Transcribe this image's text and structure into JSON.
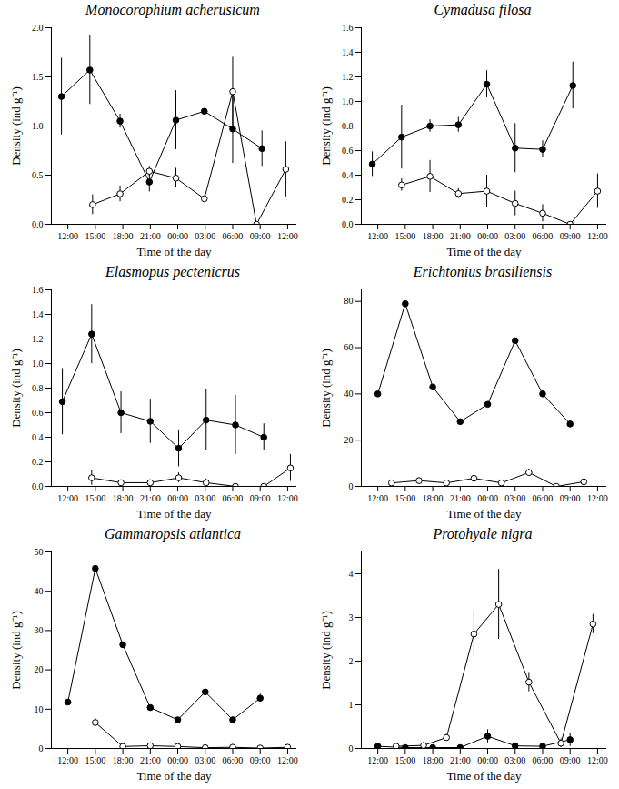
{
  "chart_data": [
    {
      "type": "line",
      "title": "Monocorophium acherusicum",
      "xlabel": "Time of the day",
      "ylabel": "Density (ind g⁻¹)",
      "xlim": [
        10.2,
        37
      ],
      "xticks": [
        {
          "value": 12,
          "label": "12:00"
        },
        {
          "value": 15,
          "label": "15:00"
        },
        {
          "value": 18,
          "label": "18:00"
        },
        {
          "value": 21,
          "label": "21:00"
        },
        {
          "value": 24,
          "label": "00:00"
        },
        {
          "value": 27,
          "label": "03:00"
        },
        {
          "value": 30,
          "label": "06:00"
        },
        {
          "value": 33,
          "label": "09:00"
        },
        {
          "value": 36,
          "label": "12:00"
        }
      ],
      "ylim": [
        0,
        2
      ],
      "yticks": [
        {
          "value": 0,
          "label": "0.0"
        },
        0.5,
        {
          "value": 1,
          "label": "1.0"
        },
        1.5,
        {
          "value": 2,
          "label": "2.0"
        }
      ],
      "series": [
        {
          "color": "#000000",
          "marker": "filled_circle",
          "x": [
            11.3,
            14.4,
            17.7,
            20.9,
            23.8,
            26.9,
            30,
            33.2
          ],
          "values": [
            1.3,
            1.57,
            1.05,
            0.43,
            1.06,
            1.15,
            0.97,
            0.77
          ],
          "errors": [
            0.39,
            0.35,
            0.07,
            0.1,
            0.3,
            0,
            0.35,
            0.18
          ]
        },
        {
          "color": "#000000",
          "marker": "open_circle",
          "x": [
            14.7,
            17.7,
            20.9,
            23.8,
            26.9,
            30,
            32.6,
            35.8
          ],
          "values": [
            0.2,
            0.31,
            0.54,
            0.47,
            0.26,
            1.35,
            0,
            0.56
          ],
          "errors": [
            0.1,
            0.08,
            0.05,
            0.1,
            0.03,
            0.35,
            0,
            0.28
          ]
        }
      ]
    },
    {
      "type": "line",
      "title": "Cymadusa filosa",
      "xlabel": "Time of the day",
      "ylabel": "Density (ind g⁻¹)",
      "xlim": [
        10.2,
        37
      ],
      "xticks": [
        {
          "value": 12,
          "label": "12:00"
        },
        {
          "value": 15,
          "label": "15:00"
        },
        {
          "value": 18,
          "label": "18:00"
        },
        {
          "value": 21,
          "label": "21:00"
        },
        {
          "value": 24,
          "label": "00:00"
        },
        {
          "value": 27,
          "label": "03:00"
        },
        {
          "value": 30,
          "label": "06:00"
        },
        {
          "value": 33,
          "label": "09:00"
        },
        {
          "value": 36,
          "label": "12:00"
        }
      ],
      "ylim": [
        0,
        1.6
      ],
      "yticks": [
        {
          "value": 0,
          "label": "0.0"
        },
        0.2,
        0.4,
        0.6,
        0.8,
        {
          "value": 1,
          "label": "1.0"
        },
        1.2,
        1.4,
        1.6
      ],
      "series": [
        {
          "color": "#000000",
          "marker": "filled_circle",
          "x": [
            11.4,
            14.6,
            17.7,
            20.8,
            23.9,
            27,
            30,
            33.3
          ],
          "values": [
            0.49,
            0.71,
            0.8,
            0.81,
            1.14,
            0.62,
            0.61,
            1.13
          ],
          "errors": [
            0.1,
            0.26,
            0.05,
            0.06,
            0.11,
            0.2,
            0.07,
            0.19
          ]
        },
        {
          "color": "#000000",
          "marker": "open_circle",
          "x": [
            14.6,
            17.7,
            20.8,
            23.9,
            27,
            30,
            33,
            36
          ],
          "values": [
            0.32,
            0.39,
            0.25,
            0.27,
            0.17,
            0.09,
            0,
            0.27
          ],
          "errors": [
            0.05,
            0.13,
            0.04,
            0.13,
            0.1,
            0.07,
            0,
            0.14
          ]
        }
      ]
    },
    {
      "type": "line",
      "title": "Elasmopus pectenicrus",
      "xlabel": "Time of the day",
      "ylabel": "Density (ind g⁻¹)",
      "xlim": [
        10.2,
        37
      ],
      "xticks": [
        {
          "value": 12,
          "label": "12:00"
        },
        {
          "value": 15,
          "label": "15:00"
        },
        {
          "value": 18,
          "label": "18:00"
        },
        {
          "value": 21,
          "label": "21:00"
        },
        {
          "value": 24,
          "label": "00:00"
        },
        {
          "value": 27,
          "label": "03:00"
        },
        {
          "value": 30,
          "label": "06:00"
        },
        {
          "value": 33,
          "label": "09:00"
        },
        {
          "value": 36,
          "label": "12:00"
        }
      ],
      "ylim": [
        0,
        1.6
      ],
      "yticks": [
        {
          "value": 0,
          "label": "0.0"
        },
        0.2,
        0.4,
        0.6,
        0.8,
        {
          "value": 1,
          "label": "1.0"
        },
        1.2,
        1.4,
        1.6
      ],
      "series": [
        {
          "color": "#000000",
          "marker": "filled_circle",
          "x": [
            11.4,
            14.6,
            17.8,
            21,
            24.1,
            27.1,
            30.3,
            33.4
          ],
          "values": [
            0.69,
            1.24,
            0.6,
            0.53,
            0.31,
            0.54,
            0.5,
            0.4
          ],
          "errors": [
            0.27,
            0.24,
            0.17,
            0.18,
            0.15,
            0.25,
            0.24,
            0.11
          ]
        },
        {
          "color": "#000000",
          "marker": "open_circle",
          "x": [
            14.6,
            17.8,
            21,
            24.1,
            27.1,
            30.3,
            33.4,
            36.3
          ],
          "values": [
            0.07,
            0.03,
            0.03,
            0.07,
            0.03,
            0,
            0,
            0.15
          ],
          "errors": [
            0.06,
            0.01,
            0.02,
            0.04,
            0.03,
            0,
            0,
            0.11
          ]
        }
      ]
    },
    {
      "type": "line",
      "title": "Erichtonius brasiliensis",
      "xlabel": "Time of the day",
      "ylabel": "Density (ind g⁻¹)",
      "xlim": [
        10.2,
        37
      ],
      "xticks": [
        {
          "value": 12,
          "label": "12:00"
        },
        {
          "value": 15,
          "label": "15:00"
        },
        {
          "value": 18,
          "label": "18:00"
        },
        {
          "value": 21,
          "label": "21:00"
        },
        {
          "value": 24,
          "label": "00:00"
        },
        {
          "value": 27,
          "label": "03:00"
        },
        {
          "value": 30,
          "label": "06:00"
        },
        {
          "value": 33,
          "label": "09:00"
        },
        {
          "value": 36,
          "label": "12:00"
        }
      ],
      "ylim": [
        0,
        85
      ],
      "yticks": [
        0,
        20,
        40,
        60,
        80
      ],
      "series": [
        {
          "color": "#000000",
          "marker": "filled_circle",
          "x": [
            12,
            15,
            18,
            21,
            24,
            27,
            30,
            33
          ],
          "values": [
            40,
            79,
            43,
            28,
            35.5,
            63,
            40,
            27
          ],
          "errors": [
            0,
            0,
            0,
            0,
            0,
            0,
            0,
            0
          ]
        },
        {
          "color": "#000000",
          "marker": "open_circle",
          "x": [
            13.5,
            16.5,
            19.5,
            22.5,
            25.5,
            28.5,
            31.5,
            34.5
          ],
          "values": [
            1.5,
            2.5,
            1.5,
            3.5,
            1.5,
            6,
            0,
            2
          ],
          "errors": [
            0,
            0.5,
            0,
            0.6,
            0,
            1.5,
            0,
            0.8
          ]
        }
      ]
    },
    {
      "type": "line",
      "title": "Gammaropsis atlantica",
      "xlabel": "Time of the day",
      "ylabel": "Density (ind g⁻¹)",
      "xlim": [
        10.2,
        37
      ],
      "xticks": [
        {
          "value": 12,
          "label": "12:00"
        },
        {
          "value": 15,
          "label": "15:00"
        },
        {
          "value": 18,
          "label": "18:00"
        },
        {
          "value": 21,
          "label": "21:00"
        },
        {
          "value": 24,
          "label": "00:00"
        },
        {
          "value": 27,
          "label": "03:00"
        },
        {
          "value": 30,
          "label": "06:00"
        },
        {
          "value": 33,
          "label": "09:00"
        },
        {
          "value": 36,
          "label": "12:00"
        }
      ],
      "ylim": [
        0,
        50
      ],
      "yticks": [
        0,
        10,
        20,
        30,
        40,
        50
      ],
      "series": [
        {
          "color": "#000000",
          "marker": "filled_circle",
          "x": [
            12,
            15,
            18,
            21,
            24,
            27,
            30,
            33
          ],
          "values": [
            11.8,
            45.8,
            26.4,
            10.4,
            7.3,
            14.4,
            7.3,
            12.8
          ],
          "errors": [
            0.6,
            0,
            0,
            0,
            0,
            0,
            0,
            1
          ]
        },
        {
          "color": "#000000",
          "marker": "open_circle",
          "x": [
            15,
            18,
            21,
            24,
            27,
            30,
            33,
            36
          ],
          "values": [
            6.6,
            0.5,
            0.7,
            0.5,
            0.2,
            0.3,
            0.1,
            0.3
          ],
          "errors": [
            1,
            0.3,
            0.2,
            0.2,
            0.1,
            0.1,
            0.1,
            0.1
          ]
        }
      ]
    },
    {
      "type": "line",
      "title": "Protohyale nigra",
      "xlabel": "Time of the day",
      "ylabel": "Density (ind g⁻¹)",
      "xlim": [
        10.2,
        37
      ],
      "xticks": [
        {
          "value": 12,
          "label": "12:00"
        },
        {
          "value": 15,
          "label": "15:00"
        },
        {
          "value": 18,
          "label": "18:00"
        },
        {
          "value": 21,
          "label": "21:00"
        },
        {
          "value": 24,
          "label": "00:00"
        },
        {
          "value": 27,
          "label": "03:00"
        },
        {
          "value": 30,
          "label": "06:00"
        },
        {
          "value": 33,
          "label": "09:00"
        },
        {
          "value": 36,
          "label": "12:00"
        }
      ],
      "ylim": [
        0,
        4.5
      ],
      "yticks": [
        0,
        1,
        2,
        3,
        4
      ],
      "series": [
        {
          "color": "#000000",
          "marker": "filled_circle",
          "x": [
            12,
            15,
            18,
            21,
            24,
            27,
            30,
            33
          ],
          "values": [
            0.05,
            0.02,
            0.02,
            0.02,
            0.28,
            0.06,
            0.05,
            0.2
          ],
          "errors": [
            0,
            0,
            0,
            0,
            0.15,
            0,
            0,
            0.15
          ]
        },
        {
          "color": "#000000",
          "marker": "open_circle",
          "x": [
            14,
            17,
            19.5,
            22.5,
            25.2,
            28.5,
            32,
            35.5
          ],
          "values": [
            0.05,
            0.07,
            0.25,
            2.62,
            3.3,
            1.52,
            0.12,
            2.85
          ],
          "errors": [
            0,
            0,
            0.07,
            0.5,
            0.8,
            0.22,
            0.1,
            0.22
          ]
        }
      ]
    }
  ]
}
